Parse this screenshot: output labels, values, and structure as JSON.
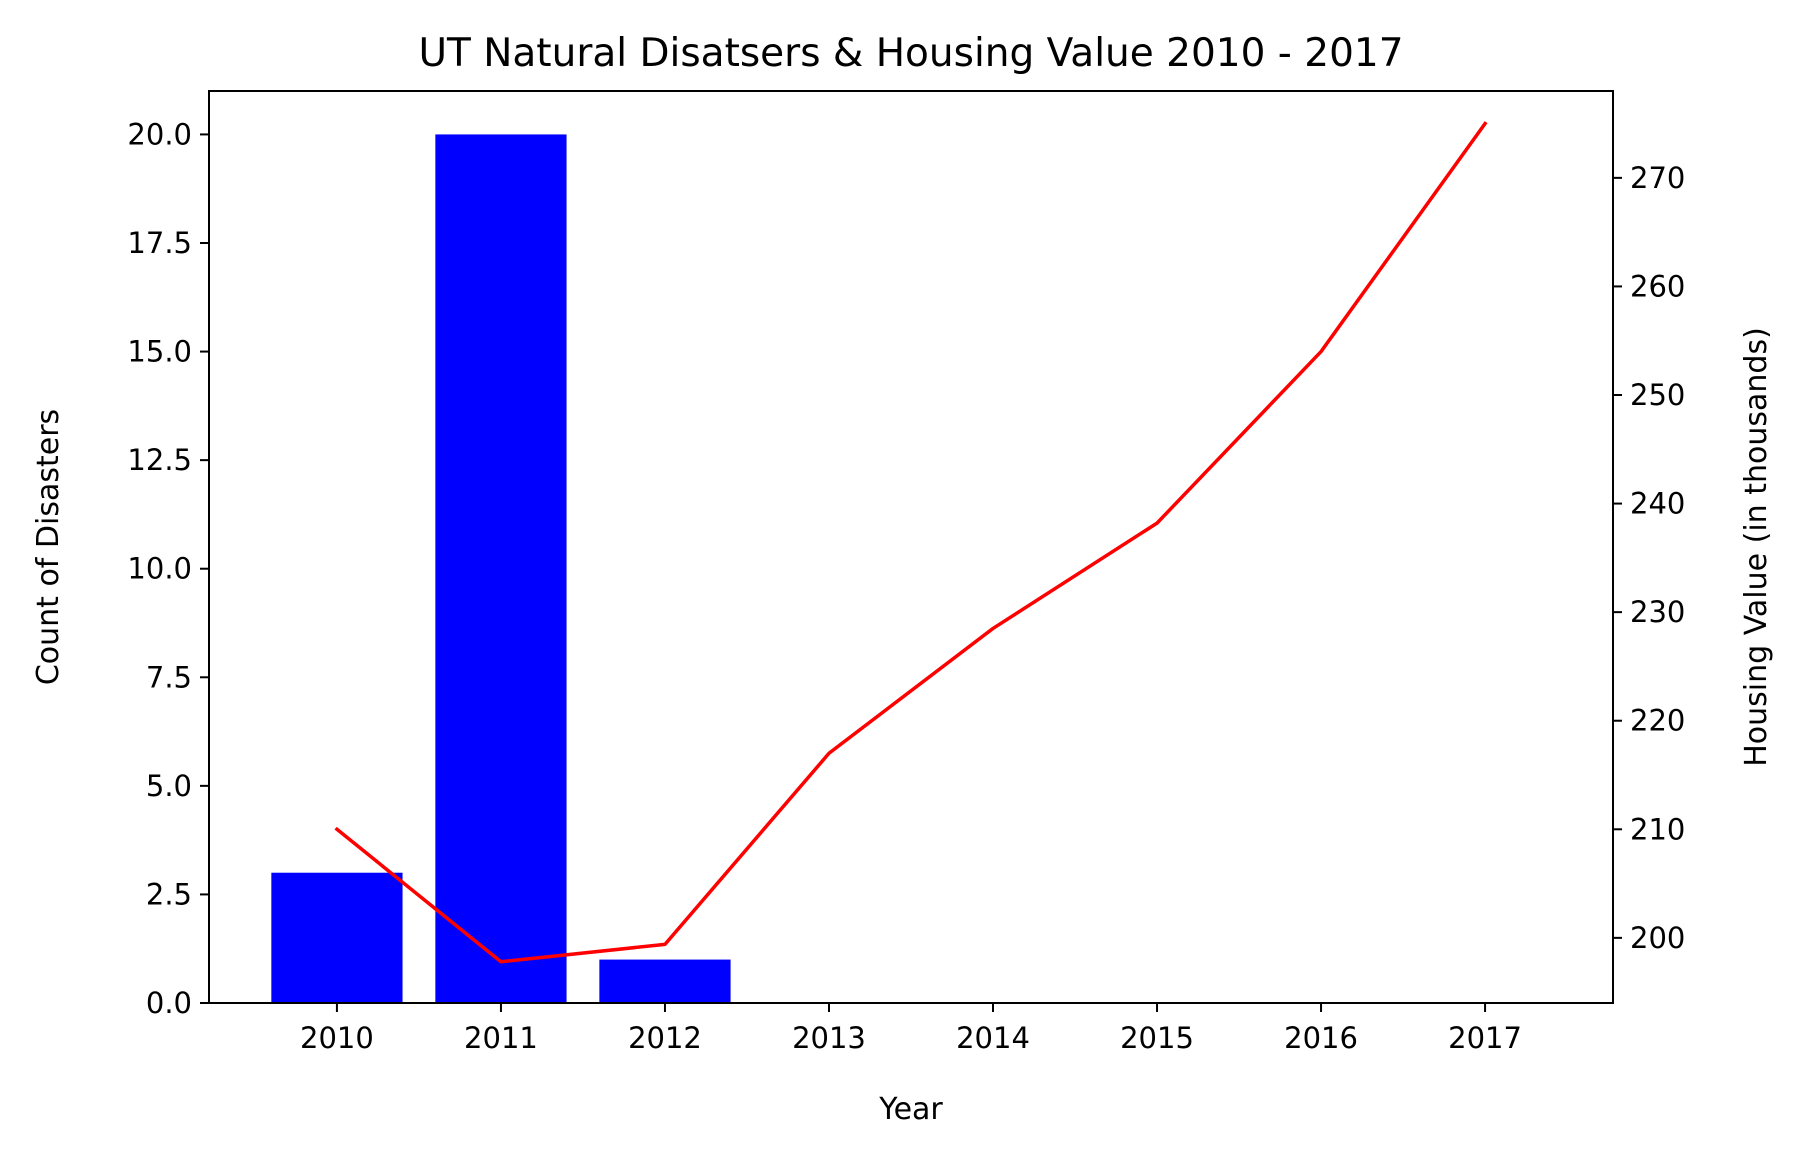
{
  "chart_data": {
    "type": "bar+line",
    "title": "UT Natural Disatsers & Housing Value 2010 - 2017",
    "xlabel": "Year",
    "ylabel_left": "Count of Disasters",
    "ylabel_right": "Housing Value (in thousands)",
    "categories": [
      "2010",
      "2011",
      "2012",
      "2013",
      "2014",
      "2015",
      "2016",
      "2017"
    ],
    "ylim_left": [
      0,
      21
    ],
    "ylim_right": [
      194,
      278
    ],
    "yticks_left": [
      "0.0",
      "2.5",
      "5.0",
      "7.5",
      "10.0",
      "12.5",
      "15.0",
      "17.5",
      "20.0"
    ],
    "yticks_right": [
      "200",
      "210",
      "220",
      "230",
      "240",
      "250",
      "260",
      "270"
    ],
    "grid": false,
    "series": [
      {
        "kind": "bar",
        "axis": "left",
        "color": "#0000ff",
        "values": [
          3,
          20,
          1,
          null,
          null,
          null,
          null,
          null
        ]
      },
      {
        "kind": "line",
        "axis": "right",
        "color": "#ff0000",
        "values": [
          210,
          197.8,
          199.4,
          217,
          228.5,
          238.2,
          254,
          275
        ]
      }
    ]
  }
}
